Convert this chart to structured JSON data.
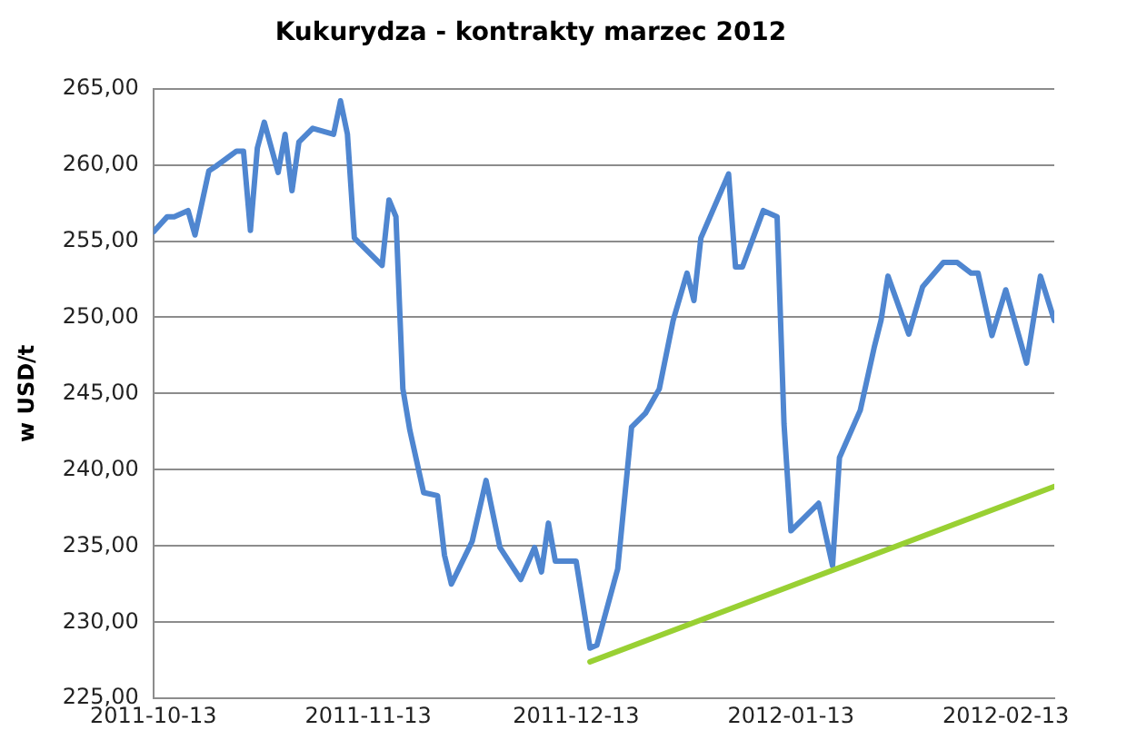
{
  "chart_data": {
    "type": "line",
    "title": "Kukurydza - kontrakty marzec 2012",
    "ylabel": "w USD/t",
    "x": [
      "2011-10-13",
      "2011-10-15",
      "2011-10-16",
      "2011-10-18",
      "2011-10-19",
      "2011-10-21",
      "2011-10-22",
      "2011-10-25",
      "2011-10-26",
      "2011-10-27",
      "2011-10-28",
      "2011-10-29",
      "2011-10-31",
      "2011-11-01",
      "2011-11-02",
      "2011-11-03",
      "2011-11-05",
      "2011-11-08",
      "2011-11-09",
      "2011-11-10",
      "2011-11-11",
      "2011-11-15",
      "2011-11-16",
      "2011-11-17",
      "2011-11-18",
      "2011-11-19",
      "2011-11-21",
      "2011-11-23",
      "2011-11-24",
      "2011-11-25",
      "2011-11-28",
      "2011-11-30",
      "2011-12-02",
      "2011-12-05",
      "2011-12-07",
      "2011-12-08",
      "2011-12-09",
      "2011-12-10",
      "2011-12-13",
      "2011-12-15",
      "2011-12-16",
      "2011-12-19",
      "2011-12-21",
      "2011-12-23",
      "2011-12-25",
      "2011-12-27",
      "2011-12-29",
      "2011-12-30",
      "2011-12-31",
      "2012-01-04",
      "2012-01-05",
      "2012-01-06",
      "2012-01-09",
      "2012-01-11",
      "2012-01-12",
      "2012-01-13",
      "2012-01-17",
      "2012-01-19",
      "2012-01-20",
      "2012-01-23",
      "2012-01-25",
      "2012-01-26",
      "2012-01-27",
      "2012-01-30",
      "2012-02-01",
      "2012-02-04",
      "2012-02-06",
      "2012-02-08",
      "2012-02-09",
      "2012-02-11",
      "2012-02-13",
      "2012-02-16",
      "2012-02-18",
      "2012-02-20"
    ],
    "series": [
      {
        "color": "#4f86d0",
        "values": [
          255.6,
          256.6,
          256.6,
          257.0,
          255.4,
          259.6,
          259.9,
          260.9,
          260.9,
          255.7,
          261.1,
          262.8,
          259.5,
          262.0,
          258.3,
          261.5,
          262.4,
          262.0,
          264.2,
          262.0,
          255.2,
          253.4,
          257.7,
          256.6,
          245.3,
          242.6,
          238.5,
          238.3,
          234.4,
          232.5,
          235.3,
          239.3,
          234.9,
          232.8,
          234.9,
          233.3,
          236.5,
          234.0,
          234.0,
          228.3,
          228.5,
          233.5,
          242.8,
          243.7,
          245.3,
          249.8,
          252.9,
          251.1,
          255.2,
          259.4,
          253.3,
          253.3,
          257.0,
          256.6,
          243.0,
          236.0,
          237.8,
          233.7,
          240.8,
          243.9,
          248.0,
          249.8,
          252.7,
          248.9,
          252.0,
          253.6,
          253.6,
          252.9,
          252.9,
          248.8,
          251.8,
          247.0,
          252.7,
          249.8
        ]
      },
      {
        "type": "line",
        "color": "#99d033",
        "x": [
          "2011-12-15",
          "2012-02-20"
        ],
        "values": [
          227.4,
          238.9
        ]
      }
    ],
    "xlim": [
      "2011-10-13",
      "2012-02-20"
    ],
    "xticks": [
      "2011-10-13",
      "2011-11-13",
      "2011-12-13",
      "2012-01-13",
      "2012-02-13"
    ],
    "ylim": [
      225,
      265
    ],
    "yticks": [
      {
        "value": 225,
        "label": "225,00"
      },
      {
        "value": 230,
        "label": "230,00"
      },
      {
        "value": 235,
        "label": "235,00"
      },
      {
        "value": 240,
        "label": "240,00"
      },
      {
        "value": 245,
        "label": "245,00"
      },
      {
        "value": 250,
        "label": "250,00"
      },
      {
        "value": 255,
        "label": "255,00"
      },
      {
        "value": 260,
        "label": "260,00"
      },
      {
        "value": 265,
        "label": "265,00"
      }
    ],
    "grid": "y",
    "legend": false,
    "marker": "none",
    "line_style": "solid"
  }
}
